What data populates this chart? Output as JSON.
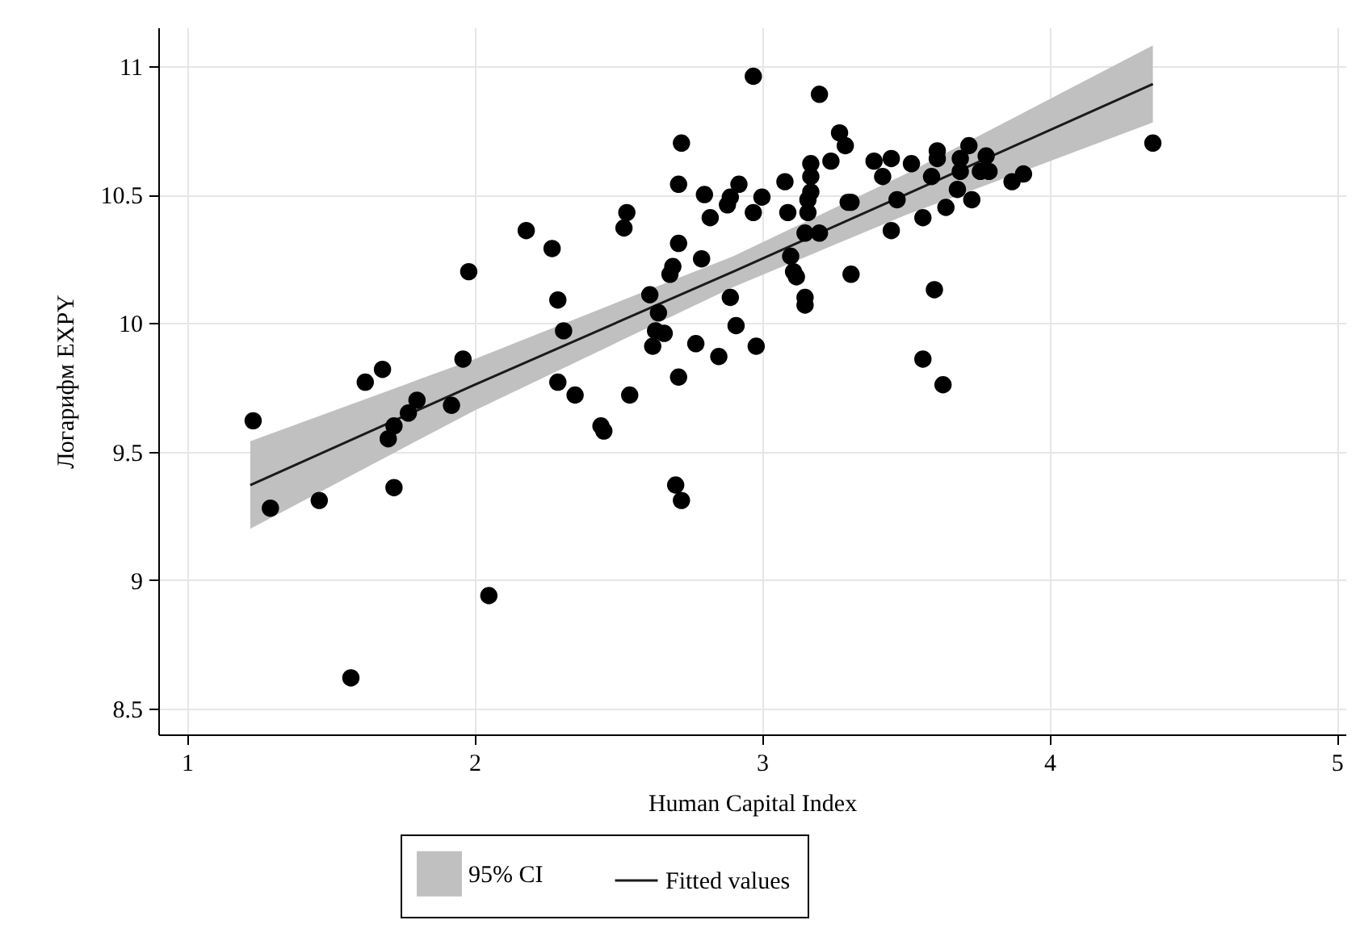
{
  "chart_data": {
    "type": "scatter",
    "xlabel": "Human Capital Index",
    "ylabel": "Логарифм EXPY",
    "xlim": [
      0.9,
      5.03
    ],
    "ylim": [
      8.4,
      11.15
    ],
    "xticks": [
      1,
      2,
      3,
      4,
      5
    ],
    "yticks": [
      8.5,
      9,
      9.5,
      10,
      10.5,
      11
    ],
    "grid": true,
    "legend": "bottom",
    "series": [
      {
        "marker": "circle",
        "color": "#000000",
        "x": [
          1.23,
          1.29,
          1.46,
          1.57,
          1.62,
          1.68,
          1.7,
          1.72,
          1.72,
          1.77,
          1.8,
          1.92,
          1.96,
          1.98,
          2.05,
          2.18,
          2.27,
          2.29,
          2.29,
          2.31,
          2.35,
          2.44,
          2.45,
          2.53,
          2.52,
          2.54,
          2.61,
          2.62,
          2.63,
          2.64,
          2.66,
          2.68,
          2.69,
          2.71,
          2.71,
          2.72,
          2.7,
          2.72,
          2.71,
          2.77,
          2.79,
          2.8,
          2.82,
          2.85,
          2.88,
          2.89,
          2.92,
          2.89,
          2.91,
          2.97,
          2.98,
          2.97,
          3.0,
          3.08,
          3.09,
          3.1,
          3.11,
          3.12,
          3.15,
          3.15,
          3.15,
          3.16,
          3.16,
          3.17,
          3.17,
          3.17,
          3.2,
          3.2,
          3.24,
          3.27,
          3.29,
          3.3,
          3.31,
          3.31,
          3.39,
          3.45,
          3.42,
          3.52,
          3.61,
          3.61,
          3.59,
          3.72,
          3.69,
          3.78,
          3.69,
          3.79,
          3.76,
          3.91,
          3.87,
          3.47,
          3.45,
          3.56,
          3.64,
          3.68,
          3.73,
          3.6,
          3.56,
          3.63,
          4.36
        ],
        "values": [
          9.62,
          9.28,
          9.31,
          8.62,
          9.77,
          9.82,
          9.55,
          9.6,
          9.36,
          9.65,
          9.7,
          9.68,
          9.86,
          10.2,
          8.94,
          10.36,
          10.29,
          10.09,
          9.77,
          9.97,
          9.72,
          9.6,
          9.58,
          10.43,
          10.37,
          9.72,
          10.11,
          9.91,
          9.97,
          10.04,
          9.96,
          10.19,
          10.22,
          10.31,
          10.54,
          10.7,
          9.37,
          9.31,
          9.79,
          9.92,
          10.25,
          10.5,
          10.41,
          9.87,
          10.46,
          10.1,
          10.54,
          10.49,
          9.99,
          10.43,
          9.91,
          10.96,
          10.49,
          10.55,
          10.43,
          10.26,
          10.2,
          10.18,
          10.1,
          10.07,
          10.35,
          10.43,
          10.48,
          10.51,
          10.57,
          10.62,
          10.35,
          10.89,
          10.63,
          10.74,
          10.69,
          10.47,
          10.47,
          10.19,
          10.63,
          10.64,
          10.57,
          10.62,
          10.67,
          10.64,
          10.57,
          10.69,
          10.64,
          10.65,
          10.59,
          10.59,
          10.59,
          10.58,
          10.55,
          10.48,
          10.36,
          10.41,
          10.45,
          10.52,
          10.48,
          10.13,
          9.86,
          9.76,
          10.7
        ]
      },
      {
        "type": "line",
        "name": "Fitted values",
        "color": "#1a1a1a",
        "x": [
          1.22,
          2.0,
          2.9,
          3.5,
          4.36
        ],
        "values": [
          9.37,
          9.76,
          10.2,
          10.5,
          10.93
        ],
        "lower": [
          9.2,
          9.66,
          10.14,
          10.42,
          10.78
        ],
        "upper": [
          9.54,
          9.86,
          10.26,
          10.58,
          11.08
        ]
      }
    ],
    "annotations": [
      "95% CI"
    ]
  }
}
